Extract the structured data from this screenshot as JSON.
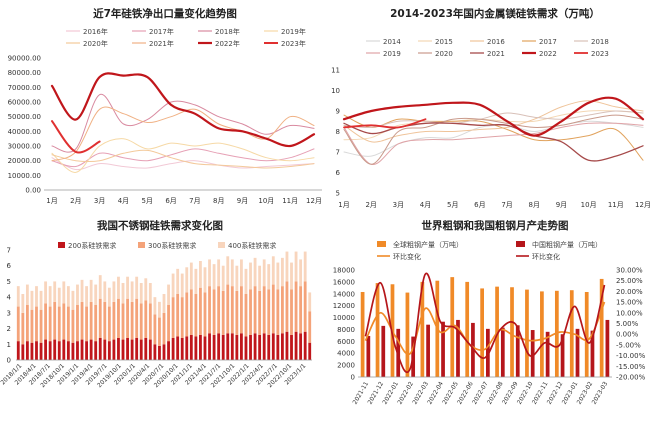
{
  "chart_data": [
    {
      "type": "line",
      "title": "近7年硅铁净出口量变化趋势图",
      "categories": [
        "1月",
        "2月",
        "3月",
        "4月",
        "5月",
        "6月",
        "7月",
        "8月",
        "9月",
        "10月",
        "11月",
        "12月"
      ],
      "y_ticks": [
        "0.00",
        "10000.00",
        "20000.00",
        "30000.00",
        "40000.00",
        "50000.00",
        "60000.00",
        "70000.00",
        "80000.00",
        "90000.00"
      ],
      "ylim": [
        0,
        90000
      ],
      "legend_position": "top",
      "series": [
        {
          "name": "2016年",
          "color": "#f2c9d6",
          "width": 1,
          "values": [
            22000,
            14000,
            18000,
            16000,
            15000,
            18000,
            20000,
            17000,
            15000,
            16000,
            17000,
            18000
          ]
        },
        {
          "name": "2017年",
          "color": "#e6a0b5",
          "width": 1,
          "values": [
            20000,
            16000,
            25000,
            22000,
            20000,
            24000,
            28000,
            25000,
            22000,
            20000,
            22000,
            28000
          ]
        },
        {
          "name": "2018年",
          "color": "#d98aa0",
          "width": 1,
          "values": [
            30000,
            28000,
            65000,
            45000,
            48000,
            60000,
            58000,
            50000,
            45000,
            38000,
            44000,
            42000
          ]
        },
        {
          "name": "2019年",
          "color": "#f6d9a6",
          "width": 1,
          "values": [
            25000,
            12000,
            30000,
            35000,
            28000,
            32000,
            30000,
            32000,
            28000,
            22000,
            20000,
            22000
          ]
        },
        {
          "name": "2020年",
          "color": "#f3c99a",
          "width": 1,
          "values": [
            24000,
            20000,
            20000,
            25000,
            27000,
            22000,
            18000,
            17000,
            16000,
            15000,
            16000,
            18000
          ]
        },
        {
          "name": "2021年",
          "color": "#f0b184",
          "width": 1,
          "values": [
            20000,
            26000,
            55000,
            52000,
            46000,
            50000,
            55000,
            45000,
            40000,
            35000,
            50000,
            44000
          ]
        },
        {
          "name": "2022年",
          "color": "#c0161b",
          "width": 2.2,
          "values": [
            71000,
            48000,
            77000,
            78000,
            77000,
            58000,
            52000,
            42000,
            40000,
            35000,
            30000,
            38000
          ]
        },
        {
          "name": "2023年",
          "color": "#e03030",
          "width": 2,
          "values": [
            47000,
            26000,
            33000,
            null,
            null,
            null,
            null,
            null,
            null,
            null,
            null,
            null
          ]
        }
      ]
    },
    {
      "type": "line",
      "title": "2014-2023年国内金属镁硅铁需求（万吨）",
      "categories": [
        "1月",
        "2月",
        "3月",
        "4月",
        "5月",
        "6月",
        "7月",
        "8月",
        "9月",
        "10月",
        "11月",
        "12月"
      ],
      "y_ticks": [
        "5",
        "6",
        "7",
        "8",
        "9",
        "10",
        "11"
      ],
      "ylim": [
        5,
        11
      ],
      "legend_position": "top",
      "series": [
        {
          "name": "2014",
          "color": "#d9d9d9",
          "width": 1,
          "values": [
            7.0,
            6.8,
            7.4,
            7.7,
            7.7,
            8.2,
            8.3,
            8.0,
            8.3,
            8.5,
            8.4,
            8.2
          ]
        },
        {
          "name": "2015",
          "color": "#f3d7b4",
          "width": 1,
          "values": [
            7.6,
            7.7,
            8.3,
            8.4,
            8.5,
            8.6,
            8.5,
            8.5,
            8.8,
            9.0,
            9.0,
            8.9
          ]
        },
        {
          "name": "2016",
          "color": "#efc49a",
          "width": 1,
          "values": [
            8.3,
            7.5,
            7.8,
            8.0,
            8.0,
            8.1,
            8.2,
            8.6,
            9.2,
            9.5,
            9.2,
            9.0
          ]
        },
        {
          "name": "2017",
          "color": "#e1a35e",
          "width": 1,
          "values": [
            8.8,
            8.2,
            8.6,
            8.5,
            8.5,
            8.5,
            8.1,
            7.6,
            7.6,
            7.8,
            8.1,
            6.6
          ]
        },
        {
          "name": "2018",
          "color": "#d8c0b8",
          "width": 1,
          "values": [
            8.3,
            8.2,
            8.5,
            8.5,
            8.4,
            8.6,
            8.9,
            8.7,
            8.6,
            8.8,
            9.0,
            8.9
          ]
        },
        {
          "name": "2019",
          "color": "#e0a3a7",
          "width": 1,
          "values": [
            8.2,
            6.4,
            7.4,
            7.6,
            7.6,
            7.7,
            7.8,
            7.9,
            8.2,
            8.4,
            8.4,
            8.3
          ]
        },
        {
          "name": "2020",
          "color": "#c99a8b",
          "width": 1,
          "values": [
            8.1,
            6.4,
            8.0,
            8.2,
            8.6,
            8.6,
            8.4,
            8.2,
            8.3,
            8.6,
            8.8,
            8.6
          ]
        },
        {
          "name": "2021",
          "color": "#a64a4a",
          "width": 1.3,
          "values": [
            8.4,
            7.9,
            8.2,
            8.4,
            8.4,
            8.3,
            8.3,
            7.8,
            7.5,
            6.6,
            6.8,
            7.3
          ]
        },
        {
          "name": "2022",
          "color": "#c0161b",
          "width": 2.2,
          "values": [
            8.6,
            9.0,
            9.2,
            9.3,
            9.4,
            9.3,
            8.5,
            7.8,
            8.5,
            9.4,
            9.6,
            8.6
          ]
        },
        {
          "name": "2023",
          "color": "#e03030",
          "width": 1.8,
          "values": [
            8.2,
            8.3,
            8.2,
            8.6,
            null,
            null,
            null,
            null,
            null,
            null,
            null,
            null
          ]
        }
      ]
    },
    {
      "type": "bar",
      "stacked": true,
      "title": "我国不锈钢硅铁需求变化图",
      "y_ticks": [
        "0",
        "1",
        "2",
        "3",
        "4",
        "5",
        "6",
        "7"
      ],
      "ylim": [
        0,
        7
      ],
      "legend_position": "top-left",
      "x_tick_labels": [
        "2018/1/1",
        "2018/4/1",
        "2018/7/1",
        "2018/10/1",
        "2019/1/1",
        "2019/4/1",
        "2019/7/1",
        "2019/10/1",
        "2020/1/1",
        "2020/4/1",
        "2020/7/1",
        "2020/10/1",
        "2021/1/1",
        "2021/4/1",
        "2021/7/1",
        "2021/10/1",
        "2022/1/1",
        "2022/4/1",
        "2022/7/1",
        "2022/10/1",
        "2023/1/1"
      ],
      "series": [
        {
          "name": "200系硅铁需求",
          "color": "#c0161b",
          "values": [
            1.2,
            1.0,
            1.2,
            1.1,
            1.2,
            1.1,
            1.3,
            1.2,
            1.3,
            1.2,
            1.3,
            1.2,
            1.1,
            1.2,
            1.3,
            1.2,
            1.3,
            1.2,
            1.4,
            1.3,
            1.2,
            1.3,
            1.4,
            1.3,
            1.4,
            1.3,
            1.4,
            1.3,
            1.4,
            1.3,
            1.0,
            0.9,
            1.0,
            1.2,
            1.4,
            1.5,
            1.4,
            1.5,
            1.6,
            1.5,
            1.6,
            1.5,
            1.7,
            1.6,
            1.7,
            1.6,
            1.7,
            1.7,
            1.6,
            1.7,
            1.5,
            1.6,
            1.7,
            1.6,
            1.7,
            1.6,
            1.7,
            1.6,
            1.7,
            1.8,
            1.6,
            1.8,
            1.7,
            1.8,
            1.1
          ]
        },
        {
          "name": "300系硅铁需求",
          "color": "#f4a37a",
          "values": [
            2.2,
            2.0,
            2.3,
            2.1,
            2.2,
            2.1,
            2.3,
            2.2,
            2.4,
            2.2,
            2.3,
            2.2,
            2.1,
            2.3,
            2.4,
            2.2,
            2.4,
            2.3,
            2.5,
            2.4,
            2.2,
            2.4,
            2.5,
            2.3,
            2.5,
            2.4,
            2.5,
            2.3,
            2.4,
            2.3,
            1.9,
            1.8,
            2.0,
            2.3,
            2.6,
            2.7,
            2.6,
            2.8,
            2.9,
            2.7,
            3.0,
            2.8,
            3.0,
            2.9,
            3.0,
            2.8,
            3.1,
            3.0,
            2.8,
            3.0,
            2.7,
            2.9,
            3.0,
            2.8,
            3.0,
            2.9,
            3.1,
            2.9,
            3.0,
            3.2,
            2.9,
            3.2,
            3.0,
            3.2,
            2.0
          ]
        },
        {
          "name": "400系硅铁需求",
          "color": "#f8d5bd",
          "values": [
            1.3,
            1.2,
            1.3,
            1.2,
            1.3,
            1.2,
            1.4,
            1.3,
            1.3,
            1.2,
            1.4,
            1.3,
            1.2,
            1.3,
            1.4,
            1.3,
            1.4,
            1.3,
            1.5,
            1.3,
            1.2,
            1.3,
            1.4,
            1.3,
            1.4,
            1.3,
            1.4,
            1.3,
            1.4,
            1.3,
            1.1,
            1.0,
            1.2,
            1.3,
            1.5,
            1.6,
            1.5,
            1.6,
            1.7,
            1.6,
            1.7,
            1.6,
            1.7,
            1.6,
            1.7,
            1.6,
            1.8,
            1.7,
            1.6,
            1.7,
            1.6,
            1.7,
            1.8,
            1.6,
            1.7,
            1.6,
            1.8,
            1.7,
            1.8,
            1.9,
            1.7,
            1.9,
            1.7,
            1.9,
            1.2
          ]
        }
      ]
    },
    {
      "type": "bar",
      "title": "世界粗钢和我国粗钢月产走势图",
      "categories": [
        "2021-11",
        "2021-12",
        "2022-01",
        "2022-02",
        "2022-03",
        "2022-04",
        "2022-05",
        "2022-06",
        "2022-07",
        "2022-08",
        "2022-09",
        "2022-10",
        "2022-11",
        "2022-12",
        "2023-01",
        "2023-02",
        "2023-03"
      ],
      "y_ticks": [
        "0",
        "2000",
        "4000",
        "6000",
        "8000",
        "10000",
        "12000",
        "14000",
        "16000",
        "18000"
      ],
      "ylim": [
        0,
        18000
      ],
      "y2_ticks": [
        "-20.00%",
        "-15.00%",
        "-10.00%",
        "-5.00%",
        "0.00%",
        "5.00%",
        "10.00%",
        "15.00%",
        "20.00%",
        "25.00%",
        "30.00%"
      ],
      "y2lim": [
        -20,
        30
      ],
      "legend_position": "top",
      "series": [
        {
          "name": "全球粗钢产量（万吨）",
          "kind": "bar",
          "color": "#f08a28",
          "values": [
            14300,
            15800,
            15600,
            14200,
            16000,
            16200,
            16800,
            16000,
            14900,
            15200,
            15100,
            14700,
            14400,
            14500,
            14600,
            14300,
            16500
          ]
        },
        {
          "name": "中国粗钢产量（万吨）",
          "kind": "bar",
          "color": "#b5161b",
          "values": [
            6900,
            8600,
            8100,
            6800,
            8800,
            9300,
            9600,
            9100,
            8100,
            8300,
            8700,
            7900,
            7600,
            7200,
            8100,
            7800,
            9600
          ]
        },
        {
          "name": "环比变化",
          "kind": "line",
          "color": "#f08a28",
          "values": [
            -3,
            10,
            -1,
            -9,
            12,
            1,
            4,
            -5,
            -7,
            2,
            -1,
            -3,
            -2,
            1,
            0,
            -2,
            15
          ]
        },
        {
          "name": "环比变化",
          "kind": "line",
          "color": "#b5161b",
          "values": [
            -1,
            24,
            -6,
            -16,
            28,
            6,
            3,
            -5,
            -11,
            2,
            5,
            -10,
            -4,
            -5,
            13,
            -4,
            23
          ]
        }
      ]
    }
  ]
}
